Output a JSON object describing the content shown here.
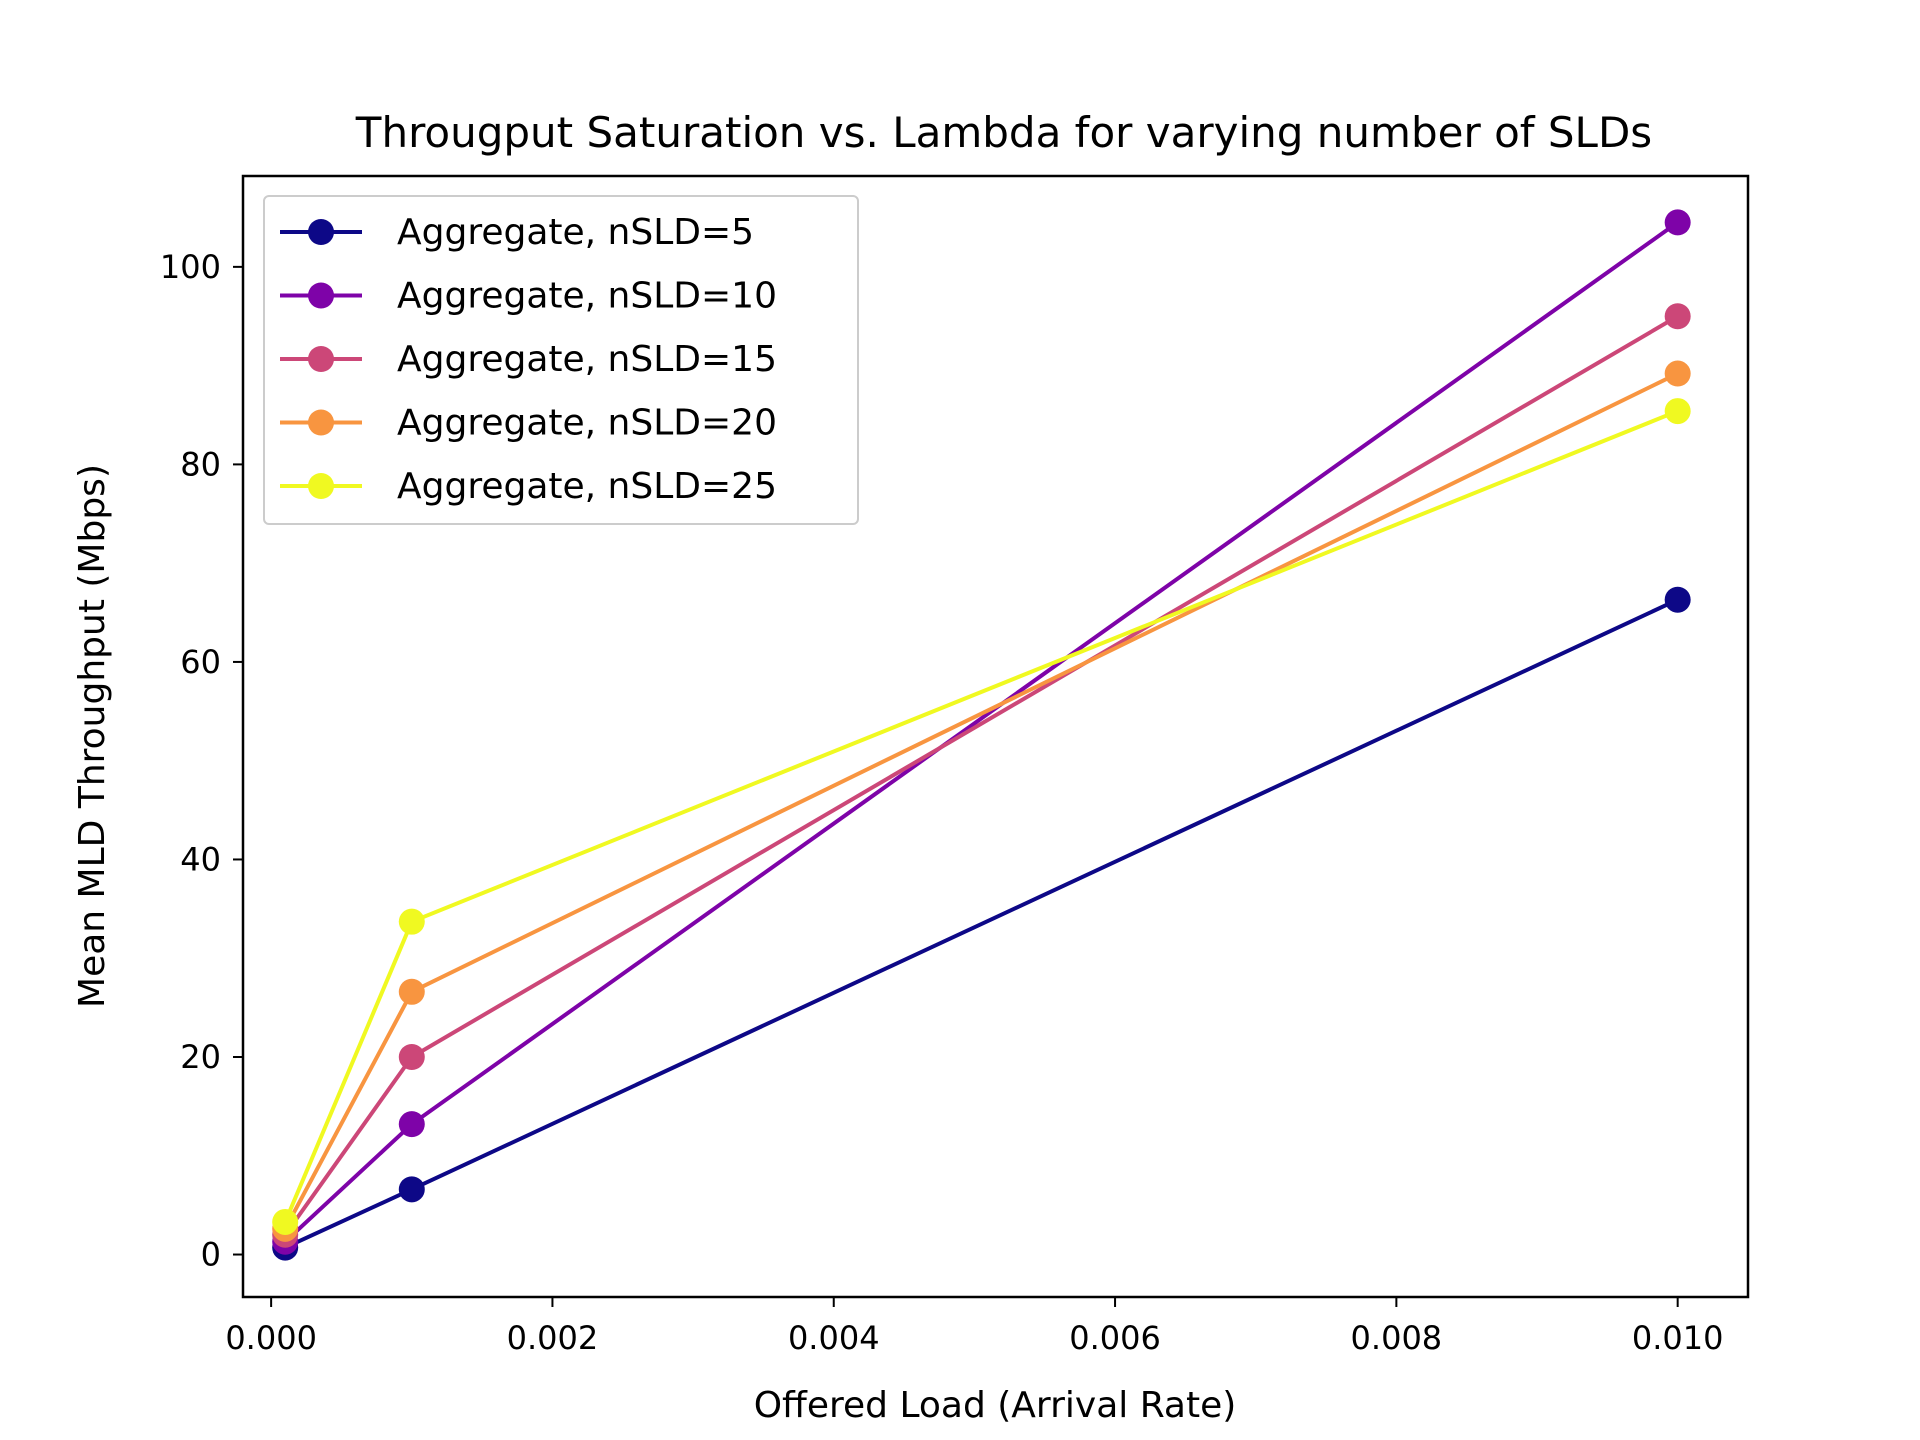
{
  "chart_data": {
    "type": "line",
    "title": "Througput Saturation vs. Lambda for varying number of SLDs",
    "xlabel": "Offered Load (Arrival Rate)",
    "ylabel": "Mean MLD Throughput (Mbps)",
    "xlim": [
      -0.0002,
      0.0105
    ],
    "ylim": [
      -4.3,
      109.2
    ],
    "xticks": [
      0.0,
      0.002,
      0.004,
      0.006,
      0.008,
      0.01
    ],
    "xtick_labels": [
      "0.000",
      "0.002",
      "0.004",
      "0.006",
      "0.008",
      "0.010"
    ],
    "yticks": [
      0,
      20,
      40,
      60,
      80,
      100
    ],
    "ytick_labels": [
      "0",
      "20",
      "40",
      "60",
      "80",
      "100"
    ],
    "grid": false,
    "legend_position": "top-left",
    "x": [
      0.0001,
      0.001,
      0.01
    ],
    "series": [
      {
        "name": "Aggregate, nSLD=5",
        "color": "#0d0887",
        "values": [
          0.7,
          6.6,
          66.3
        ]
      },
      {
        "name": "Aggregate, nSLD=10",
        "color": "#7e03a8",
        "values": [
          1.3,
          13.2,
          104.5
        ]
      },
      {
        "name": "Aggregate, nSLD=15",
        "color": "#cc4778",
        "values": [
          2.0,
          20.0,
          95.0
        ]
      },
      {
        "name": "Aggregate, nSLD=20",
        "color": "#f89540",
        "values": [
          2.6,
          26.6,
          89.2
        ]
      },
      {
        "name": "Aggregate, nSLD=25",
        "color": "#f0f921",
        "values": [
          3.3,
          33.7,
          85.4
        ]
      }
    ]
  }
}
